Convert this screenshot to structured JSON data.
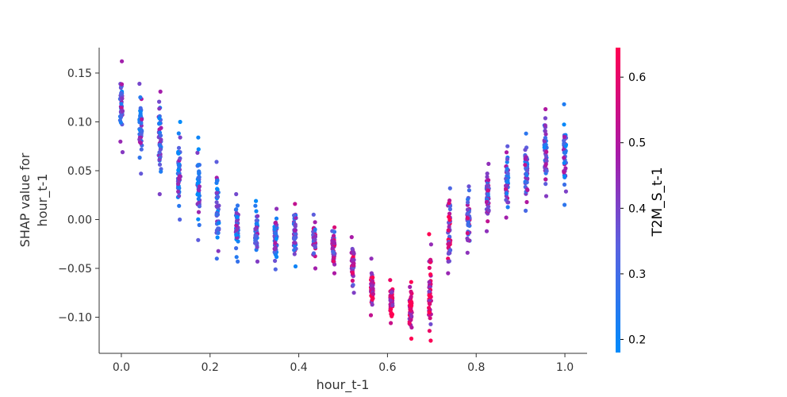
{
  "chart_data": {
    "type": "scatter",
    "title": "",
    "xlabel": "hour_t-1",
    "ylabel_lines": [
      "SHAP value for",
      "hour_t-1"
    ],
    "xlim": [
      -0.05,
      1.05
    ],
    "ylim": [
      -0.137,
      0.176
    ],
    "x_ticks": [
      0.0,
      0.2,
      0.4,
      0.6,
      0.8,
      1.0
    ],
    "x_tick_labels": [
      "0.0",
      "0.2",
      "0.4",
      "0.6",
      "0.8",
      "1.0"
    ],
    "y_ticks": [
      -0.1,
      -0.05,
      0.0,
      0.05,
      0.1,
      0.15
    ],
    "y_tick_labels": [
      "−0.10",
      "−0.05",
      "0.00",
      "0.05",
      "0.10",
      "0.15"
    ],
    "grid": false,
    "colorbar": {
      "label": "T2M_S_t-1",
      "range": [
        0.18,
        0.645
      ],
      "ticks": [
        0.2,
        0.3,
        0.4,
        0.5,
        0.6
      ],
      "tick_labels": [
        "0.2",
        "0.3",
        "0.4",
        "0.5",
        "0.6"
      ],
      "colors": [
        "#008bfb",
        "#ff0052"
      ]
    },
    "groups": [
      {
        "x": 0.0,
        "ymin": 0.069,
        "ymax": 0.162,
        "cmid": 0.36
      },
      {
        "x": 0.0435,
        "ymin": 0.047,
        "ymax": 0.139,
        "cmid": 0.34
      },
      {
        "x": 0.087,
        "ymin": 0.026,
        "ymax": 0.131,
        "cmid": 0.33
      },
      {
        "x": 0.1304,
        "ymin": 0.0,
        "ymax": 0.1,
        "cmid": 0.32
      },
      {
        "x": 0.1739,
        "ymin": -0.021,
        "ymax": 0.084,
        "cmid": 0.31
      },
      {
        "x": 0.2174,
        "ymin": -0.04,
        "ymax": 0.059,
        "cmid": 0.31
      },
      {
        "x": 0.2609,
        "ymin": -0.043,
        "ymax": 0.026,
        "cmid": 0.32
      },
      {
        "x": 0.3043,
        "ymin": -0.043,
        "ymax": 0.019,
        "cmid": 0.33
      },
      {
        "x": 0.3478,
        "ymin": -0.051,
        "ymax": 0.011,
        "cmid": 0.34
      },
      {
        "x": 0.3913,
        "ymin": -0.048,
        "ymax": 0.016,
        "cmid": 0.36
      },
      {
        "x": 0.4348,
        "ymin": -0.05,
        "ymax": 0.005,
        "cmid": 0.4
      },
      {
        "x": 0.4783,
        "ymin": -0.055,
        "ymax": -0.008,
        "cmid": 0.44
      },
      {
        "x": 0.5217,
        "ymin": -0.075,
        "ymax": -0.018,
        "cmid": 0.5
      },
      {
        "x": 0.5652,
        "ymin": -0.098,
        "ymax": -0.04,
        "cmid": 0.55
      },
      {
        "x": 0.6087,
        "ymin": -0.106,
        "ymax": -0.062,
        "cmid": 0.57
      },
      {
        "x": 0.6522,
        "ymin": -0.122,
        "ymax": -0.064,
        "cmid": 0.56
      },
      {
        "x": 0.6957,
        "ymin": -0.124,
        "ymax": -0.015,
        "cmid": 0.55
      },
      {
        "x": 0.7391,
        "ymin": -0.055,
        "ymax": 0.032,
        "cmid": 0.48
      },
      {
        "x": 0.7826,
        "ymin": -0.034,
        "ymax": 0.034,
        "cmid": 0.42
      },
      {
        "x": 0.8261,
        "ymin": -0.012,
        "ymax": 0.057,
        "cmid": 0.4
      },
      {
        "x": 0.8696,
        "ymin": 0.002,
        "ymax": 0.075,
        "cmid": 0.38
      },
      {
        "x": 0.913,
        "ymin": 0.009,
        "ymax": 0.088,
        "cmid": 0.36
      },
      {
        "x": 0.9565,
        "ymin": 0.024,
        "ymax": 0.113,
        "cmid": 0.35
      },
      {
        "x": 1.0,
        "ymin": 0.015,
        "ymax": 0.118,
        "cmid": 0.35
      }
    ]
  }
}
